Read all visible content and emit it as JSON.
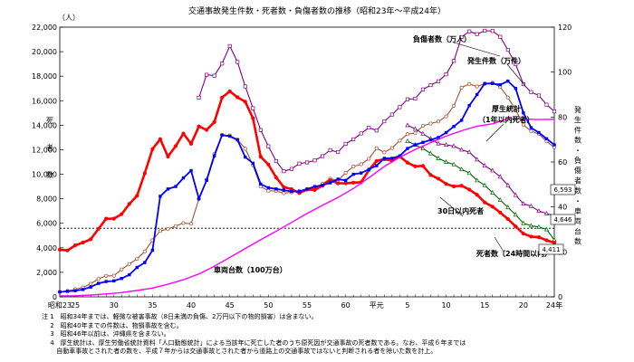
{
  "chart_data": {
    "type": "line",
    "title": "交通事故発生件数・死者数・負傷者数の推移（昭和23年～平成24年）",
    "left_axis": {
      "unit": "（人）",
      "label": [
        "死",
        "者",
        "数"
      ],
      "ylim": [
        0,
        22000
      ],
      "ticks": [
        "0",
        "2,000",
        "4,000",
        "6,000",
        "8,000",
        "10,000",
        "12,000",
        "14,000",
        "16,000",
        "18,000",
        "20,000",
        "22,000"
      ]
    },
    "right_axis": {
      "label": [
        "発",
        "生",
        "件",
        "数",
        "・",
        "負",
        "傷",
        "者",
        "数",
        "・",
        "車",
        "両",
        "台",
        "数"
      ],
      "ylim": [
        0,
        120
      ],
      "ticks": [
        "0",
        "20",
        "40",
        "60",
        "80",
        "100",
        "120"
      ]
    },
    "x_axis": {
      "range": [
        1948,
        2012
      ],
      "ticks": [
        {
          "year": 1948,
          "label": "昭和23"
        },
        {
          "year": 1950,
          "label": "25"
        },
        {
          "year": 1955,
          "label": "30"
        },
        {
          "year": 1960,
          "label": "35"
        },
        {
          "year": 1965,
          "label": "40"
        },
        {
          "year": 1970,
          "label": "45"
        },
        {
          "year": 1975,
          "label": "50"
        },
        {
          "year": 1980,
          "label": "55"
        },
        {
          "year": 1985,
          "label": "60"
        },
        {
          "year": 1989,
          "label": "平元"
        },
        {
          "year": 1993,
          "label": "5"
        },
        {
          "year": 1998,
          "label": "10"
        },
        {
          "year": 2003,
          "label": "15"
        },
        {
          "year": 2008,
          "label": "20"
        },
        {
          "year": 2012,
          "label": "24年"
        }
      ]
    },
    "reference_line": {
      "value": 5600,
      "axis": "left",
      "style": "dotted"
    },
    "series": [
      {
        "name": "負傷者数（万人）",
        "axis": "right",
        "color": "#800080",
        "marker": "open-square",
        "x": [
          1966,
          1967,
          1968,
          1969,
          1970,
          1971,
          1972,
          1973,
          1974,
          1975,
          1976,
          1977,
          1978,
          1979,
          1980,
          1981,
          1982,
          1983,
          1984,
          1985,
          1986,
          1987,
          1988,
          1989,
          1990,
          1991,
          1992,
          1993,
          1994,
          1995,
          1996,
          1997,
          1998,
          1999,
          2000,
          2001,
          2002,
          2003,
          2004,
          2005,
          2006,
          2007,
          2008,
          2009,
          2010,
          2011,
          2012
        ],
        "values": [
          88.6,
          98.8,
          98.4,
          103.8,
          111.6,
          104.5,
          93.6,
          83.9,
          74.2,
          67.0,
          60.4,
          55.9,
          56.9,
          59.3,
          59.8,
          60.7,
          62.6,
          65.3,
          64.4,
          68.1,
          70.1,
          72.7,
          75.3,
          74.0,
          78.1,
          81.1,
          84.4,
          87.9,
          88.2,
          92.3,
          94.2,
          95.9,
          99.0,
          105.0,
          115.6,
          118.1,
          116.9,
          118.4,
          118.3,
          115.7,
          109.9,
          103.5,
          94.6,
          91.1,
          89.6,
          85.5,
          82.5
        ]
      },
      {
        "name": "発生件数（万件）",
        "axis": "right",
        "color": "#a0522d",
        "marker": "open-circle",
        "x": [
          1948,
          1949,
          1950,
          1951,
          1952,
          1953,
          1954,
          1955,
          1956,
          1957,
          1958,
          1959,
          1960,
          1961,
          1962,
          1963,
          1964,
          1965,
          1966,
          1967,
          1968,
          1969,
          1970,
          1971,
          1972,
          1973,
          1974,
          1975,
          1976,
          1977,
          1978,
          1979,
          1980,
          1981,
          1982,
          1983,
          1984,
          1985,
          1986,
          1987,
          1988,
          1989,
          1990,
          1991,
          1992,
          1993,
          1994,
          1995,
          1996,
          1997,
          1998,
          1999,
          2000,
          2001,
          2002,
          2003,
          2004,
          2005,
          2006,
          2007,
          2008,
          2009,
          2010,
          2011,
          2012
        ],
        "values": [
          2.2,
          2.6,
          3.4,
          4.2,
          5.8,
          8.0,
          9.3,
          9.4,
          12.2,
          14.6,
          16.9,
          20.2,
          25.2,
          29.3,
          30.2,
          31.5,
          32.8,
          32.5,
          43.5,
          52.2,
          63.5,
          72.0,
          71.8,
          70.0,
          65.9,
          58.6,
          49.1,
          47.2,
          47.1,
          46.1,
          46.5,
          47.1,
          47.7,
          48.5,
          50.3,
          52.6,
          51.8,
          55.2,
          58.0,
          59.0,
          61.4,
          66.1,
          64.3,
          66.2,
          69.5,
          72.4,
          72.9,
          76.1,
          77.1,
          78.0,
          80.3,
          85.0,
          93.1,
          94.7,
          93.6,
          94.8,
          95.2,
          93.4,
          88.7,
          83.2,
          76.6,
          73.7,
          72.5,
          69.2,
          66.5
        ]
      },
      {
        "name": "厚生統計（1年以内死者）",
        "axis": "left",
        "color": "#800080",
        "marker": "open-triangle",
        "x": [
          1993,
          1994,
          1995,
          1996,
          1997,
          1998,
          1999,
          2000,
          2001,
          2002,
          2003,
          2004,
          2005,
          2006,
          2007,
          2008,
          2009,
          2010,
          2011,
          2012
        ],
        "values": [
          14000,
          13700,
          13300,
          12900,
          12500,
          12400,
          12300,
          12000,
          11800,
          11200,
          10700,
          10300,
          9800,
          9100,
          8300,
          7600,
          7400,
          7000,
          6800,
          6593
        ]
      },
      {
        "name": "30日以内死者",
        "axis": "left",
        "color": "#006400",
        "marker": "open-triangle",
        "x": [
          1993,
          1994,
          1995,
          1996,
          1997,
          1998,
          1999,
          2000,
          2001,
          2002,
          2003,
          2004,
          2005,
          2006,
          2007,
          2008,
          2009,
          2010,
          2011,
          2012
        ],
        "values": [
          12700,
          12400,
          12100,
          11700,
          11300,
          11000,
          10800,
          10400,
          10100,
          9500,
          9100,
          8500,
          7900,
          7300,
          6700,
          6000,
          5800,
          5700,
          5500,
          4646
        ]
      },
      {
        "name": "死者数（24時間以内）",
        "axis": "left",
        "color": "#ff0000",
        "marker": "filled-circle",
        "x": [
          1948,
          1949,
          1950,
          1951,
          1952,
          1953,
          1954,
          1955,
          1956,
          1957,
          1958,
          1959,
          1960,
          1961,
          1962,
          1963,
          1964,
          1965,
          1966,
          1967,
          1968,
          1969,
          1970,
          1971,
          1972,
          1973,
          1974,
          1975,
          1976,
          1977,
          1978,
          1979,
          1980,
          1981,
          1982,
          1983,
          1984,
          1985,
          1986,
          1987,
          1988,
          1989,
          1990,
          1991,
          1992,
          1993,
          1994,
          1995,
          1996,
          1997,
          1998,
          1999,
          2000,
          2001,
          2002,
          2003,
          2004,
          2005,
          2006,
          2007,
          2008,
          2009,
          2010,
          2011,
          2012
        ],
        "values": [
          3848,
          3790,
          4202,
          4429,
          4696,
          5544,
          6374,
          6379,
          6751,
          7575,
          8248,
          10079,
          12055,
          12865,
          11445,
          12301,
          13318,
          12484,
          13904,
          13618,
          14256,
          16257,
          16765,
          16278,
          15918,
          14574,
          11432,
          10792,
          9734,
          8945,
          8783,
          8466,
          8760,
          8719,
          9073,
          9520,
          9262,
          9261,
          9317,
          9347,
          10344,
          11086,
          11227,
          11105,
          11451,
          10942,
          10649,
          10679,
          9942,
          9640,
          9211,
          9006,
          9066,
          8747,
          8326,
          7702,
          7358,
          6871,
          6352,
          5744,
          5155,
          4914,
          4863,
          4612,
          4411
        ]
      },
      {
        "name": "厚生統計（1年以内死者）",
        "axis": "left",
        "color": "#0000ff",
        "marker": "filled-square",
        "x": [
          1948,
          1949,
          1950,
          1951,
          1952,
          1953,
          1954,
          1955,
          1956,
          1957,
          1958,
          1959,
          1960,
          1961,
          1962,
          1963,
          1964,
          1965,
          1966,
          1967,
          1968,
          1969,
          1970,
          1971,
          1972,
          1973,
          1974,
          1975,
          1976,
          1977,
          1978,
          1979,
          1980,
          1981,
          1982,
          1983,
          1984,
          1985,
          1986,
          1987,
          1988,
          1989,
          1990,
          1991,
          1992,
          1993,
          1994,
          1995,
          1996,
          1997,
          1998,
          1999,
          2000,
          2001,
          2002,
          2003,
          2004,
          2005,
          2006,
          2007,
          2008,
          2009,
          2010,
          2011,
          2012
        ],
        "values": [
          400,
          450,
          500,
          600,
          800,
          1100,
          1250,
          1300,
          1500,
          1800,
          2400,
          2800,
          3800,
          8200,
          8800,
          9000,
          9700,
          10300,
          8000,
          9500,
          11500,
          13200,
          13100,
          12800,
          11400,
          10900,
          9200,
          8900,
          8800,
          8700,
          8600,
          8600,
          8800,
          9000,
          9100,
          9300,
          9600,
          9500,
          10000,
          10100,
          10400,
          10700,
          11300,
          11300,
          11500,
          12100,
          12400,
          12600,
          12800,
          13000,
          13400,
          13900,
          14400,
          15600,
          16500,
          17400,
          17400,
          17300,
          17600,
          17000,
          15000,
          13800,
          13400,
          12900,
          12400
        ]
      },
      {
        "name": "車両台数（100万台）",
        "axis": "right",
        "color": "#ff00ff",
        "marker": "none",
        "x": [
          1948,
          1950,
          1952,
          1954,
          1956,
          1958,
          1960,
          1962,
          1964,
          1966,
          1968,
          1970,
          1972,
          1974,
          1976,
          1978,
          1980,
          1982,
          1984,
          1986,
          1988,
          1990,
          1992,
          1994,
          1996,
          1998,
          2000,
          2002,
          2004,
          2006,
          2008,
          2010,
          2012
        ],
        "values": [
          0.4,
          0.5,
          0.8,
          1.3,
          1.9,
          2.8,
          3.9,
          5.6,
          7.6,
          10.2,
          13.6,
          17.5,
          21.5,
          25.4,
          29.2,
          33.1,
          37.1,
          40.7,
          44.2,
          48.2,
          53.0,
          58.0,
          62.1,
          65.6,
          68.6,
          71.5,
          73.9,
          75.9,
          77.0,
          79.3,
          79.1,
          78.9,
          79.0
        ]
      }
    ],
    "series_labels": [
      {
        "text": "負傷者数（万人）"
      },
      {
        "text": "発生件数（万件）"
      },
      {
        "text": "厚生統計"
      },
      {
        "text": "（1年以内死者）"
      },
      {
        "text": "30日以内死者"
      },
      {
        "text": "死者数（24時間以内）"
      },
      {
        "text": "車両台数（100万台）"
      }
    ],
    "end_value_labels": [
      "6,593",
      "4,646",
      "4,411"
    ]
  },
  "notes": [
    "注 1　昭和34年までは、軽微な被害事故（8日未満の負傷、2万円以下の物的損害）は含まない。",
    "　 2　昭和40年までの件数は、物損事故を含む。",
    "　 3　昭和46年以前は、沖縄県を含まない。",
    "　 4　厚生統計は、厚生労働省統計資料「人口動態統計」による当該年に死亡した者のうち原死因が交通事故の死者数である。なお、平成６年までは",
    "　　 自動車事故とされた者の数を、平成７年からは交通事故とされた者から道路上の交通事故ではないと判断される者を除いた数を計上。"
  ]
}
